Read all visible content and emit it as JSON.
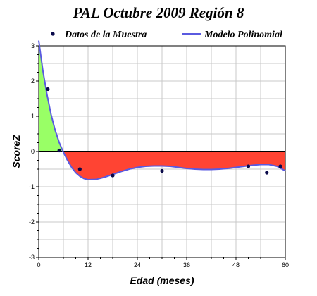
{
  "chart_data": {
    "type": "scatter",
    "title": "PAL Octubre 2009 Región 8",
    "xlabel": "Edad (meses)",
    "ylabel": "ScoreZ",
    "xlim": [
      0,
      60
    ],
    "ylim": [
      -3,
      3
    ],
    "x_ticks": [
      0,
      12,
      24,
      36,
      48,
      60
    ],
    "y_ticks": [
      -3,
      -2,
      -1,
      0,
      1,
      2,
      3
    ],
    "grid": true,
    "legend_position": "top",
    "series": [
      {
        "name": "Datos de la Muestra",
        "kind": "points",
        "color": "#0a0a4a",
        "points": [
          {
            "x": 2.2,
            "y": 1.77
          },
          {
            "x": 5.0,
            "y": 0.03
          },
          {
            "x": 10.0,
            "y": -0.5
          },
          {
            "x": 18.0,
            "y": -0.68
          },
          {
            "x": 30.0,
            "y": -0.55
          },
          {
            "x": 51.0,
            "y": -0.42
          },
          {
            "x": 55.5,
            "y": -0.6
          },
          {
            "x": 58.8,
            "y": -0.42
          }
        ]
      },
      {
        "name": "Modelo Polinomial",
        "kind": "line",
        "color": "#5a5ae0",
        "points": [
          {
            "x": 0,
            "y": 3.15
          },
          {
            "x": 1,
            "y": 2.3
          },
          {
            "x": 2,
            "y": 1.62
          },
          {
            "x": 3,
            "y": 1.05
          },
          {
            "x": 4,
            "y": 0.6
          },
          {
            "x": 5,
            "y": 0.25
          },
          {
            "x": 6,
            "y": -0.02
          },
          {
            "x": 7,
            "y": -0.25
          },
          {
            "x": 8,
            "y": -0.45
          },
          {
            "x": 9,
            "y": -0.6
          },
          {
            "x": 10,
            "y": -0.7
          },
          {
            "x": 11,
            "y": -0.77
          },
          {
            "x": 12,
            "y": -0.8
          },
          {
            "x": 14,
            "y": -0.79
          },
          {
            "x": 16,
            "y": -0.73
          },
          {
            "x": 18,
            "y": -0.65
          },
          {
            "x": 20,
            "y": -0.57
          },
          {
            "x": 22,
            "y": -0.5
          },
          {
            "x": 24,
            "y": -0.45
          },
          {
            "x": 26,
            "y": -0.42
          },
          {
            "x": 28,
            "y": -0.41
          },
          {
            "x": 30,
            "y": -0.41
          },
          {
            "x": 32,
            "y": -0.42
          },
          {
            "x": 34,
            "y": -0.45
          },
          {
            "x": 36,
            "y": -0.48
          },
          {
            "x": 38,
            "y": -0.5
          },
          {
            "x": 40,
            "y": -0.51
          },
          {
            "x": 42,
            "y": -0.51
          },
          {
            "x": 44,
            "y": -0.5
          },
          {
            "x": 46,
            "y": -0.48
          },
          {
            "x": 48,
            "y": -0.45
          },
          {
            "x": 50,
            "y": -0.42
          },
          {
            "x": 52,
            "y": -0.39
          },
          {
            "x": 54,
            "y": -0.37
          },
          {
            "x": 56,
            "y": -0.37
          },
          {
            "x": 58,
            "y": -0.42
          },
          {
            "x": 60,
            "y": -0.55
          }
        ]
      }
    ],
    "fill_colors": {
      "above": "#99ff66",
      "below": "#ff4433"
    },
    "zero_line_color": "#000000",
    "grid_color": "#c8c8c8"
  }
}
